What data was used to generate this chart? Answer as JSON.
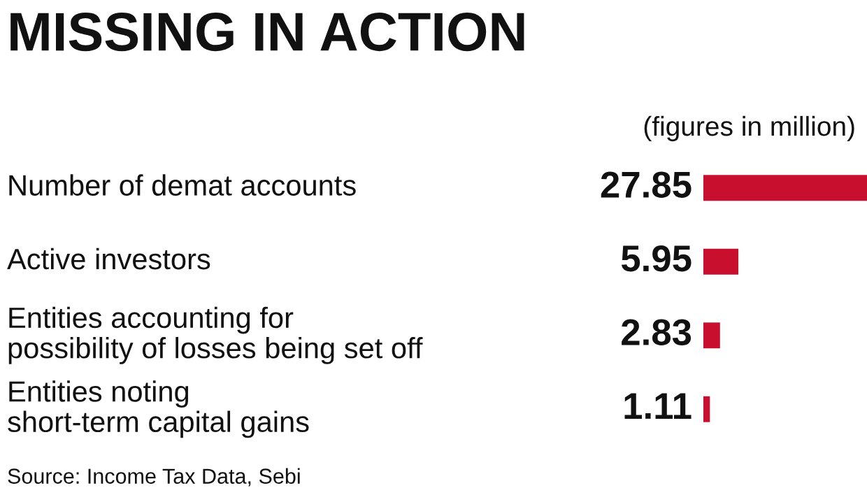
{
  "chart_data": {
    "type": "bar",
    "orientation": "horizontal",
    "title": "MISSING IN ACTION",
    "subtitle": "(figures in million)",
    "categories": [
      "Number of demat accounts",
      "Active investors",
      "Entities accounting for\npossibility of losses being set off",
      "Entities noting\nshort-term capital gains"
    ],
    "values": [
      27.85,
      5.95,
      2.83,
      1.11
    ],
    "color": "#c8102e",
    "data_labels": true,
    "annotations": [
      "Source: Income Tax Data, Sebi"
    ]
  }
}
